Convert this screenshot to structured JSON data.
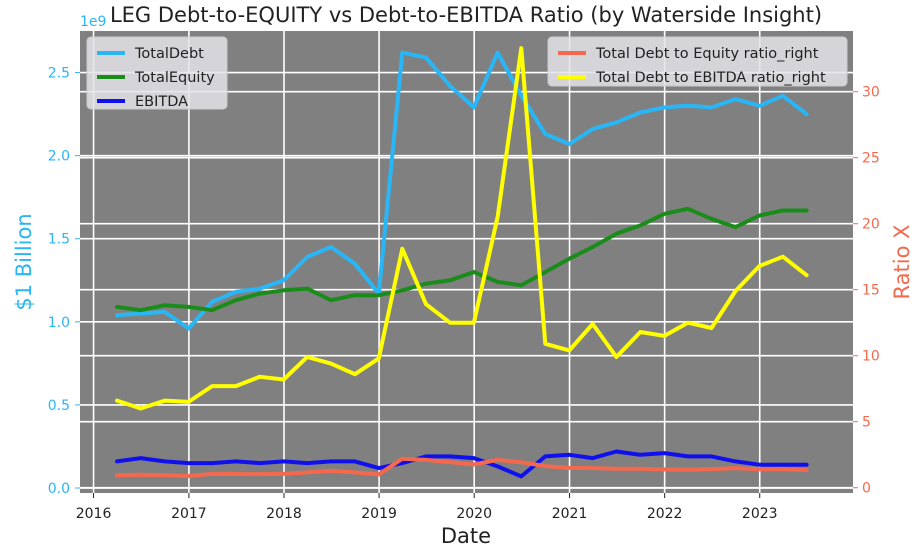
{
  "chart_data": {
    "type": "line",
    "title": "LEG Debt-to-EQUITY vs Debt-to-EBITDA Ratio (by Waterside Insight)",
    "xlabel": "Date",
    "ylabel_left": "$1 Billion",
    "ylabel_right": "Ratio X",
    "left_axis_offset_label": "1e9",
    "x_tick_labels": [
      "2016",
      "2017",
      "2018",
      "2019",
      "2020",
      "2021",
      "2022",
      "2023"
    ],
    "y_left_tick_labels": [
      "0.0",
      "0.5",
      "1.0",
      "1.5",
      "2.0",
      "2.5"
    ],
    "y_right_tick_labels": [
      "0",
      "5",
      "10",
      "15",
      "20",
      "25",
      "30"
    ],
    "xlim": [
      "2015-11-10",
      "2023-12-25"
    ],
    "ylim_left": [
      -0.03,
      2.75
    ],
    "ylim_right": [
      -0.4,
      34.6
    ],
    "background": "#808080",
    "grid": true,
    "x": [
      "2016-03-31",
      "2016-06-30",
      "2016-09-30",
      "2016-12-31",
      "2017-03-31",
      "2017-06-30",
      "2017-09-30",
      "2017-12-31",
      "2018-03-31",
      "2018-06-30",
      "2018-09-30",
      "2018-12-31",
      "2019-03-31",
      "2019-06-30",
      "2019-09-30",
      "2019-12-31",
      "2020-03-31",
      "2020-06-30",
      "2020-09-30",
      "2020-12-31",
      "2021-03-31",
      "2021-06-30",
      "2021-09-30",
      "2021-12-31",
      "2022-03-31",
      "2022-06-30",
      "2022-09-30",
      "2022-12-31",
      "2023-03-31",
      "2023-06-30"
    ],
    "series": [
      {
        "name": "TotalDebt",
        "axis": "left",
        "color": "#29b6f6",
        "values": [
          1.04,
          1.05,
          1.06,
          0.96,
          1.12,
          1.18,
          1.2,
          1.25,
          1.39,
          1.45,
          1.35,
          1.17,
          2.62,
          2.59,
          2.42,
          2.29,
          2.62,
          2.36,
          2.13,
          2.07,
          2.16,
          2.2,
          2.26,
          2.29,
          2.3,
          2.29,
          2.34,
          2.3,
          2.36,
          2.25
        ]
      },
      {
        "name": "TotalEquity",
        "axis": "left",
        "color": "#1a8c1a",
        "values": [
          1.09,
          1.07,
          1.1,
          1.09,
          1.07,
          1.13,
          1.17,
          1.19,
          1.2,
          1.13,
          1.16,
          1.16,
          1.19,
          1.23,
          1.25,
          1.3,
          1.24,
          1.22,
          1.3,
          1.38,
          1.45,
          1.53,
          1.58,
          1.65,
          1.68,
          1.62,
          1.57,
          1.64,
          1.67,
          1.67
        ]
      },
      {
        "name": "EBITDA",
        "axis": "left",
        "color": "#1010ee",
        "values": [
          0.16,
          0.18,
          0.16,
          0.15,
          0.15,
          0.16,
          0.15,
          0.16,
          0.15,
          0.16,
          0.16,
          0.12,
          0.15,
          0.19,
          0.19,
          0.18,
          0.13,
          0.07,
          0.19,
          0.2,
          0.18,
          0.22,
          0.2,
          0.21,
          0.19,
          0.19,
          0.16,
          0.14,
          0.14,
          0.14
        ]
      },
      {
        "name": "Total Debt to Equity ratio_right",
        "axis": "right",
        "color": "#f4694e",
        "values": [
          0.95,
          0.98,
          0.96,
          0.88,
          1.05,
          1.04,
          1.03,
          1.05,
          1.16,
          1.28,
          1.16,
          1.01,
          2.2,
          2.11,
          1.94,
          1.76,
          2.11,
          1.93,
          1.64,
          1.5,
          1.49,
          1.44,
          1.43,
          1.39,
          1.37,
          1.41,
          1.49,
          1.4,
          1.41,
          1.35
        ]
      },
      {
        "name": "Total Debt to EBITDA ratio_right",
        "axis": "right",
        "color": "#ffff00",
        "values": [
          6.6,
          6.0,
          6.6,
          6.5,
          7.7,
          7.7,
          8.4,
          8.2,
          9.9,
          9.4,
          8.6,
          9.8,
          18.1,
          13.9,
          12.5,
          12.5,
          20.5,
          33.3,
          10.9,
          10.4,
          12.4,
          9.9,
          11.8,
          11.5,
          12.5,
          12.1,
          14.9,
          16.8,
          17.5,
          16.1
        ]
      }
    ],
    "legends": [
      {
        "position": "upper-left",
        "entries": [
          "TotalDebt",
          "TotalEquity",
          "EBITDA"
        ]
      },
      {
        "position": "upper-right",
        "entries": [
          "Total Debt to Equity ratio_right",
          "Total Debt to EBITDA ratio_right"
        ]
      }
    ]
  }
}
